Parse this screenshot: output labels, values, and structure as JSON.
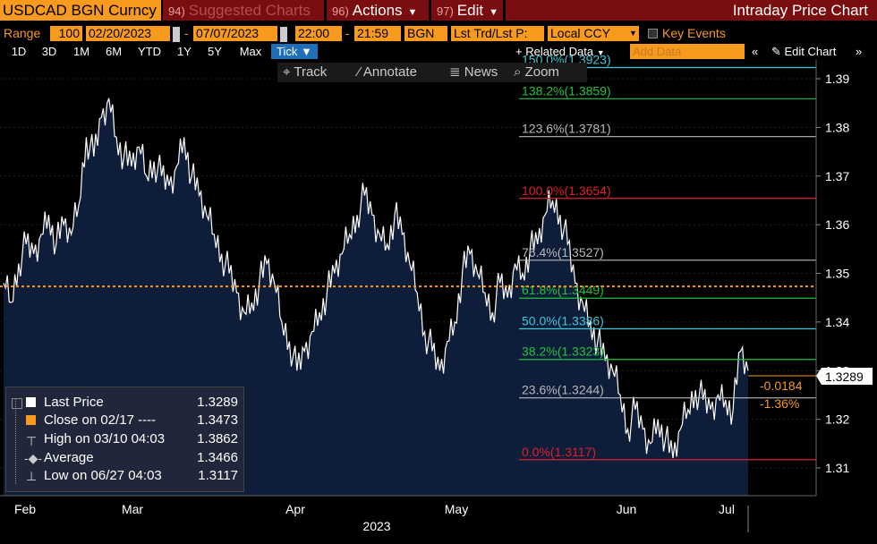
{
  "top_bar": {
    "security": "USDCAD BGN Curncy",
    "suggested": {
      "num": "94)",
      "label": "Suggested Charts"
    },
    "actions": {
      "num": "96)",
      "label": "Actions"
    },
    "edit": {
      "num": "97)",
      "label": "Edit"
    },
    "title": "Intraday Price Chart"
  },
  "range_bar": {
    "range_label": "Range",
    "period": "100",
    "start_date": "02/20/2023",
    "end_date": "07/07/2023",
    "start_time": "22:00",
    "end_time": "21:59",
    "source": "BGN",
    "price_type": "Lst Trd/Lst P:",
    "currency": "Local CCY",
    "key_events": "Key Events"
  },
  "period_bar": {
    "buttons": [
      "1D",
      "3D",
      "1M",
      "6M",
      "YTD",
      "1Y",
      "5Y",
      "Max"
    ],
    "tick": "Tick",
    "related": "Related Data",
    "add_data_placeholder": "Add Data",
    "collapse": "«",
    "edit_chart": "Edit Chart",
    "more": "»"
  },
  "tools": {
    "track": "Track",
    "annotate": "Annotate",
    "news": "News",
    "zoom": "Zoom"
  },
  "colors": {
    "bloomberg_orange": "#f79a1e",
    "header_red": "#7a0d10",
    "area_fill": "#0e1d3a",
    "price_line": "#ffffff",
    "fib_red": "#e0202a",
    "fib_green": "#22c23a",
    "fib_gray": "#b8b8b8",
    "fib_cyan": "#40c8d8",
    "close_line": "#f79a1e"
  },
  "chart_data": {
    "type": "line",
    "x_labels": [
      "Feb",
      "Mar",
      "Apr",
      "May",
      "Jun",
      "Jul"
    ],
    "year_label": "2023",
    "y_ticks": [
      "1.39",
      "1.38",
      "1.37",
      "1.36",
      "1.35",
      "1.34",
      "1.33",
      "1.32",
      "1.31"
    ],
    "ylim": [
      1.305,
      1.395
    ],
    "series": [
      {
        "name": "Last Price",
        "x": [
          0,
          1,
          2,
          3,
          4,
          5,
          6,
          7,
          8,
          9,
          10,
          11,
          12,
          13,
          14,
          15,
          16,
          17,
          18,
          19,
          20,
          21,
          22,
          23,
          24,
          25,
          26,
          27,
          28,
          29,
          30,
          31,
          32,
          33,
          34,
          35,
          36,
          37,
          38,
          39,
          40,
          41,
          42,
          43,
          44,
          45,
          46,
          47,
          48,
          49,
          50,
          51,
          52,
          53,
          54,
          55,
          56,
          57,
          58,
          59,
          60,
          61,
          62,
          63,
          64,
          65,
          66,
          67,
          68,
          69,
          70,
          71,
          72,
          73,
          74,
          75,
          76,
          77,
          78,
          79,
          80,
          81,
          82,
          83,
          84,
          85,
          86,
          87,
          88,
          89,
          90,
          91,
          92,
          93,
          94,
          95,
          96,
          97,
          98,
          99
        ],
        "values": [
          1.348,
          1.344,
          1.352,
          1.356,
          1.354,
          1.358,
          1.362,
          1.356,
          1.36,
          1.358,
          1.364,
          1.378,
          1.374,
          1.382,
          1.386,
          1.378,
          1.374,
          1.372,
          1.376,
          1.37,
          1.373,
          1.37,
          1.368,
          1.372,
          1.378,
          1.37,
          1.366,
          1.362,
          1.358,
          1.354,
          1.35,
          1.346,
          1.342,
          1.344,
          1.348,
          1.352,
          1.348,
          1.34,
          1.336,
          1.33,
          1.334,
          1.338,
          1.342,
          1.346,
          1.35,
          1.354,
          1.358,
          1.362,
          1.366,
          1.362,
          1.358,
          1.356,
          1.362,
          1.358,
          1.352,
          1.346,
          1.338,
          1.334,
          1.33,
          1.336,
          1.34,
          1.35,
          1.354,
          1.35,
          1.346,
          1.342,
          1.348,
          1.345,
          1.352,
          1.35,
          1.355,
          1.356,
          1.362,
          1.365,
          1.362,
          1.356,
          1.348,
          1.344,
          1.34,
          1.336,
          1.332,
          1.33,
          1.325,
          1.318,
          1.322,
          1.318,
          1.315,
          1.32,
          1.316,
          1.312,
          1.318,
          1.322,
          1.326,
          1.324,
          1.322,
          1.325,
          1.324,
          1.322,
          1.334,
          1.33
        ]
      }
    ],
    "fibonacci_levels": [
      {
        "label": "0.0%(1.3117)",
        "value": 1.3117,
        "color": "#e0202a"
      },
      {
        "label": "23.6%(1.3244)",
        "value": 1.3244,
        "color": "#b8b8b8"
      },
      {
        "label": "38.2%(1.3323)",
        "value": 1.3323,
        "color": "#22c23a"
      },
      {
        "label": "50.0%(1.3386)",
        "value": 1.3386,
        "color": "#40c8d8"
      },
      {
        "label": "61.8%(1.3449)",
        "value": 1.3449,
        "color": "#22c23a"
      },
      {
        "label": "76.4%(1.3527)",
        "value": 1.3527,
        "color": "#b8b8b8"
      },
      {
        "label": "100.0%(1.3654)",
        "value": 1.3654,
        "color": "#e0202a"
      },
      {
        "label": "123.6%(1.3781)",
        "value": 1.3781,
        "color": "#b8b8b8"
      },
      {
        "label": "138.2%(1.3859)",
        "value": 1.3859,
        "color": "#22c23a"
      },
      {
        "label": "150.0%(1.3923)",
        "value": 1.3923,
        "color": "#40c8d8"
      }
    ],
    "reference_line": {
      "label": "Close on 02/17",
      "value": 1.3473
    },
    "last_price_marker": "1.3289",
    "change": "-0.0184",
    "change_pct": "-1.36%"
  },
  "legend": {
    "items": [
      {
        "name": "Last Price",
        "value": "1.3289",
        "icon": "white-square"
      },
      {
        "name": "Close on 02/17 ----",
        "value": "1.3473",
        "icon": "orange-square"
      },
      {
        "name": "High on 03/10 04:03",
        "value": "1.3862",
        "icon": "high-marker-icon"
      },
      {
        "name": "Average",
        "value": "1.3466",
        "icon": "average-marker-icon"
      },
      {
        "name": "Low on 06/27 04:03",
        "value": "1.3117",
        "icon": "low-marker-icon"
      }
    ]
  }
}
